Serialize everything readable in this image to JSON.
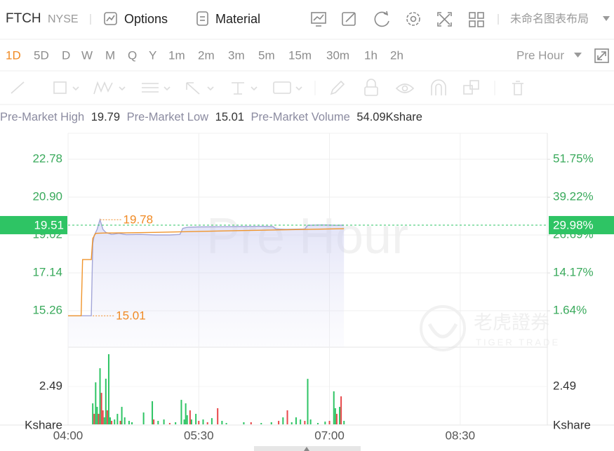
{
  "header": {
    "symbol": "FTCH",
    "exchange": "NYSE",
    "buttons": [
      "Options",
      "Material"
    ],
    "layout_name": "未命名图表布局"
  },
  "periods": {
    "items": [
      "1D",
      "5D",
      "D",
      "W",
      "M",
      "Q",
      "Y",
      "1m",
      "2m",
      "3m",
      "5m",
      "15m",
      "30m",
      "1h",
      "2h"
    ],
    "active": 0,
    "active_color": "#f08a24",
    "session": "Pre Hour"
  },
  "stats": [
    {
      "label": "Pre-Market High",
      "value": 19.79
    },
    {
      "label": "Pre-Market Low",
      "value": 15.01
    },
    {
      "label": "Pre-Market Volume",
      "value": "54.09Kshare"
    }
  ],
  "watermark": {
    "text": "Pre Hour",
    "brand": "老虎證券",
    "brand_en": "TIGER TRADE"
  },
  "chart_data": [
    {
      "type": "line",
      "xlim": [
        "04:00",
        "09:30"
      ],
      "xticks": [
        "04:00",
        "05:30",
        "07:00",
        "08:30"
      ],
      "ylim": [
        13.45,
        24.07
      ],
      "yticks": [
        22.78,
        {
          "value": 20.9,
          "label": "20.90"
        },
        19.02,
        17.14,
        15.26
      ],
      "y2lim": [
        -10.39,
        60.36
      ],
      "y2ticks": [
        {
          "value": 51.75,
          "label": "51.75%"
        },
        {
          "value": 39.22,
          "label": "39.22%"
        },
        {
          "value": 26.69,
          "label": "26.69%"
        },
        {
          "value": 14.17,
          "label": "14.17%"
        },
        {
          "value": 1.64,
          "label": "1.64%"
        }
      ],
      "grid": true,
      "series": [
        {
          "color": "#a3a6d8",
          "area": true,
          "x": [
            "04:00",
            "04:16",
            "04:17",
            "04:18",
            "04:20",
            "04:22",
            "04:24",
            "04:26",
            "04:30",
            "04:35",
            "04:40",
            "04:50",
            "05:00",
            "05:10",
            "05:17",
            "05:19",
            "05:22",
            "05:30",
            "05:45",
            "06:00",
            "06:15",
            "06:21",
            "06:23",
            "06:30",
            "06:43",
            "06:45",
            "06:55",
            "07:05",
            "07:10"
          ],
          "values": [
            15.01,
            15.01,
            18.6,
            19.0,
            19.3,
            19.78,
            19.3,
            19.15,
            19.05,
            19.1,
            19.04,
            19.05,
            19.02,
            19.02,
            19.05,
            19.35,
            19.4,
            19.42,
            19.43,
            19.44,
            19.45,
            19.44,
            19.32,
            19.3,
            19.32,
            19.5,
            19.52,
            19.5,
            19.51
          ]
        },
        {
          "color": "#f0952c",
          "x": [
            "04:00",
            "04:09",
            "04:10",
            "04:16",
            "04:17",
            "04:19",
            "04:25",
            "04:40",
            "05:00",
            "05:30",
            "06:00",
            "06:30",
            "07:10"
          ],
          "values": [
            15.01,
            15.01,
            17.8,
            17.8,
            18.85,
            19.1,
            19.12,
            19.13,
            19.15,
            19.2,
            19.24,
            19.28,
            19.33
          ]
        }
      ],
      "last_value": 19.51,
      "last_change": {
        "value": 29.98,
        "label": "29.98%"
      },
      "last_color": "#2ec464",
      "annotations": [
        {
          "x": "04:22",
          "value": 19.78
        },
        {
          "x": "04:17",
          "value": 15.01
        }
      ],
      "annotation_color": "#f08a24"
    },
    {
      "type": "bar",
      "xlim": [
        "04:00",
        "09:30"
      ],
      "xticks": [
        "04:00",
        "05:30",
        "07:00",
        "08:30"
      ],
      "ylim": [
        0,
        5.07
      ],
      "yticks": [
        2.49
      ],
      "unit": "Kshare",
      "series": [
        {
          "color": "#2ec464",
          "x": [
            "04:17",
            "04:19",
            "04:20",
            "04:22",
            "04:25",
            "04:26",
            "04:28",
            "04:29",
            "04:32",
            "04:34",
            "04:37",
            "04:39",
            "04:42",
            "04:44",
            "04:52",
            "04:58",
            "05:02",
            "05:06",
            "05:14",
            "05:18",
            "05:20",
            "05:21",
            "05:22",
            "05:25",
            "05:28",
            "05:33",
            "05:39",
            "05:46",
            "05:49",
            "06:01",
            "06:13",
            "06:20",
            "06:28",
            "06:34",
            "06:37",
            "06:40",
            "06:45",
            "06:47",
            "06:52",
            "06:57",
            "07:03",
            "07:04",
            "07:07",
            "07:10"
          ],
          "values": [
            1.38,
            2.76,
            1.15,
            3.69,
            0.46,
            3.0,
            4.61,
            0.46,
            0.32,
            0.69,
            1.15,
            0.46,
            0.23,
            0.14,
            0.78,
            1.52,
            0.23,
            0.32,
            0.14,
            1.61,
            0.32,
            1.38,
            0.6,
            0.32,
            0.69,
            0.32,
            0.41,
            0.23,
            0.09,
            0.14,
            0.09,
            0.14,
            0.46,
            0.14,
            0.46,
            0.32,
            2.99,
            0.32,
            0.09,
            0.18,
            2.17,
            1.06,
            1.15,
            0.23
          ]
        },
        {
          "color": "#e8474a",
          "x": [
            "04:18",
            "04:21",
            "04:23",
            "04:24",
            "04:27",
            "04:30",
            "04:36",
            "04:59",
            "05:10",
            "05:24",
            "05:30",
            "05:36",
            "05:43",
            "06:06",
            "06:25",
            "06:31",
            "06:43",
            "07:00",
            "07:05",
            "07:08"
          ],
          "values": [
            0.69,
            0.69,
            2.07,
            0.92,
            0.92,
            0.23,
            0.23,
            0.32,
            0.09,
            0.92,
            0.23,
            0.14,
            1.06,
            0.14,
            0.23,
            0.92,
            0.23,
            0.23,
            0.69,
            1.84
          ]
        }
      ]
    }
  ]
}
